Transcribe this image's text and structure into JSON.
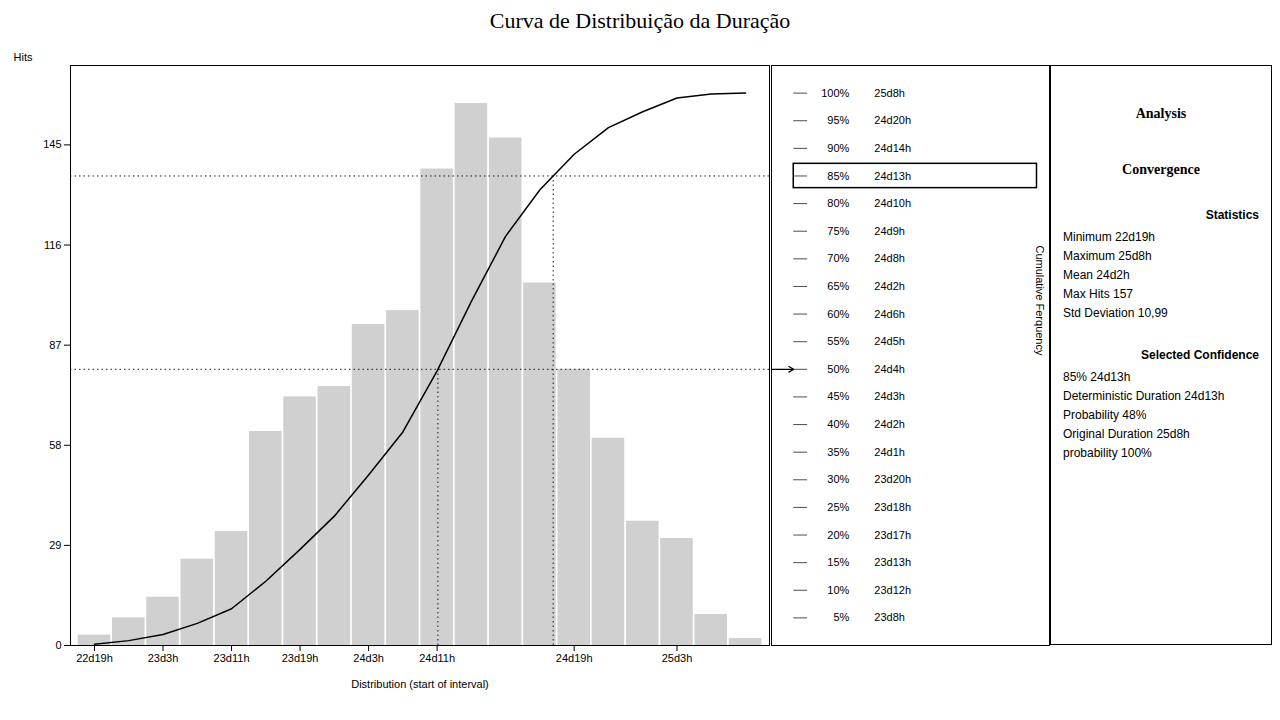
{
  "chart_data": {
    "type": "bar",
    "title": "Curva de Distribuição da Duração",
    "xlabel": "Distribution (start of interval)",
    "ylabel": "Hits",
    "categories": [
      "22d19h",
      null,
      "23d3h",
      null,
      "23d11h",
      null,
      "23d19h",
      null,
      "24d3h",
      null,
      "24d11h",
      null,
      null,
      null,
      "24d19h",
      null,
      null,
      "25d3h",
      null,
      null
    ],
    "values": [
      3,
      8,
      14,
      25,
      33,
      62,
      72,
      75,
      93,
      97,
      138,
      157,
      147,
      105,
      80,
      60,
      36,
      31,
      9,
      2
    ],
    "color": "#d0d0d0",
    "ylim": [
      0,
      168
    ],
    "yticks": [
      0,
      29,
      58,
      87,
      116,
      145
    ],
    "grid": false,
    "series": [
      {
        "name": "Cumulative Ferquency",
        "type": "line",
        "axis": "y2",
        "color": "black",
        "values": [
          0.2406,
          0.8821,
          2.0048,
          4.0096,
          6.656,
          11.6279,
          17.4018,
          23.4162,
          30.8741,
          38.6528,
          49.7193,
          62.3095,
          74.0978,
          82.518,
          88.9334,
          93.745,
          96.6319,
          99.1179,
          99.8396,
          100
        ]
      }
    ],
    "y2lim": [
      0,
      105
    ],
    "y2ticks": [
      {
        "value": 5,
        "label": "5%"
      },
      {
        "value": 10,
        "label": "10%"
      },
      {
        "value": 15,
        "label": "15%"
      },
      {
        "value": 20,
        "label": "20%"
      },
      {
        "value": 25,
        "label": "25%"
      },
      {
        "value": 30,
        "label": "30%"
      },
      {
        "value": 35,
        "label": "35%"
      },
      {
        "value": 40,
        "label": "40%"
      },
      {
        "value": 45,
        "label": "45%"
      },
      {
        "value": 50,
        "label": "50%"
      },
      {
        "value": 55,
        "label": "55%"
      },
      {
        "value": 60,
        "label": "60%"
      },
      {
        "value": 65,
        "label": "65%"
      },
      {
        "value": 70,
        "label": "70%"
      },
      {
        "value": 75,
        "label": "75%"
      },
      {
        "value": 80,
        "label": "80%"
      },
      {
        "value": 85,
        "label": "85%"
      },
      {
        "value": 90,
        "label": "90%"
      },
      {
        "value": 95,
        "label": "95%"
      },
      {
        "value": 100,
        "label": "100%"
      }
    ],
    "durations": [
      "23d8h",
      "23d12h",
      "23d13h",
      "23d17h",
      "23d18h",
      "23d20h",
      "24d1h",
      "24d2h",
      "24d3h",
      "24d4h",
      "24d5h",
      "24d6h",
      "24d2h",
      "24d8h",
      "24d9h",
      "24d10h",
      "24d13h",
      "24d14h",
      "24d20h",
      "25d8h"
    ],
    "reference_lines": [
      85,
      50
    ],
    "highlight": 85,
    "arrow": 50,
    "info": {
      "labels": [
        "Analysis",
        "Convergence"
      ],
      "sections": [
        {
          "title": "Statistics",
          "lines": [
            "Minimum  22d19h",
            "Maximum  25d8h",
            "Mean  24d2h",
            "Max Hits  157",
            "Std Deviation  10,99"
          ]
        },
        {
          "title": "Selected Confidence",
          "lines": [
            "85%  24d13h",
            "Deterministic Duration  24d13h",
            "Probability  48%",
            "Original Duration  25d8h",
            "probability  100%"
          ]
        }
      ]
    }
  }
}
